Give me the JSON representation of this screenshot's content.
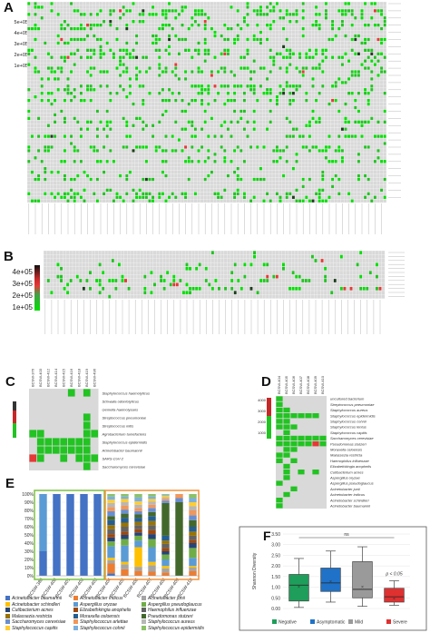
{
  "panels": {
    "a": {
      "label": "A",
      "colorbar": [
        "5e+05",
        "4e+05",
        "3e+05",
        "2e+05",
        "1e+05"
      ]
    },
    "b": {
      "label": "B",
      "colorbar": [
        "4e+05",
        "3e+05",
        "2e+05",
        "1e+05"
      ]
    },
    "c": {
      "label": "C",
      "columns": [
        "BCSW-376",
        "BCSW-403",
        "BCSW-412",
        "BCSW-414",
        "BCSW-415",
        "BCSW-416",
        "BCSW-418",
        "BCSW-419",
        "BCSW-496"
      ],
      "rows": [
        "Staphylococcus haemolyticus",
        "Schwalia odontolyticus",
        "Gemella haemolysans",
        "Streptococcus pneumoniae",
        "Streptococcus mitis",
        "Agrobacterium tumefaciens",
        "Staphylococcus epidermidis",
        "Acinetobacter baumannii",
        "SARS-CoV-2",
        "Saccharomyces cerevisiae"
      ]
    },
    "d": {
      "label": "D",
      "colorbar": [
        "4000",
        "3000",
        "2000",
        "1000"
      ],
      "columns": [
        "BCSW-404",
        "BCSW-405",
        "BCSW-406",
        "BCSW-407",
        "BCSW-408",
        "BCSW-409",
        "BCSW-410"
      ],
      "rows": [
        "uncultured bacterium",
        "Streptococcus pneumoniae",
        "Staphylococcus aureus",
        "Staphylococcus epidermidis",
        "Staphylococcus cohnii",
        "Staphylococcus lentus",
        "Staphylococcus capitis",
        "Saccharomyces cerevisiae",
        "Pseudomonas stutzeri",
        "Moraxella osloensis",
        "Malassezia restricta",
        "Haemophilus influenzae",
        "Elizabethkingia anophelis",
        "Cutibacterium acnes",
        "Aspergillus oryzae",
        "Aspergillus pseudoglaucus",
        "Acinetobacter junii",
        "Acinetobacter indicus",
        "Acinetobacter schindleri",
        "Acinetobacter baumannii"
      ]
    },
    "e": {
      "label": "E"
    },
    "f": {
      "label": "F"
    }
  },
  "chart_data": [
    {
      "type": "bar",
      "panel": "E",
      "stacked": true,
      "ylim": [
        0,
        100
      ],
      "yticks": [
        "0%",
        "10%",
        "20%",
        "30%",
        "40%",
        "50%",
        "60%",
        "70%",
        "80%",
        "90%",
        "100%"
      ],
      "categories": [
        "BCSW-380",
        "BCSW-400",
        "BCSW-401",
        "BCSW-402",
        "BCSW-403",
        "BCSW-404",
        "BCSW-405",
        "BCSW-406",
        "BCSW-407",
        "BCSW-408",
        "BCSW-409",
        "BCSW-410"
      ],
      "series": [
        {
          "name": "Acinetobacter baumannii",
          "color": "#4472c4",
          "values": [
            30,
            100,
            100,
            100,
            100,
            3,
            0,
            0,
            0,
            0,
            0,
            0
          ]
        },
        {
          "name": "Acinetobacter indicus",
          "color": "#ed7d31",
          "values": [
            0,
            0,
            0,
            0,
            0,
            12,
            8,
            6,
            5,
            4,
            0,
            6
          ]
        },
        {
          "name": "Acinetobacter junii",
          "color": "#a5a5a5",
          "values": [
            0,
            0,
            0,
            0,
            0,
            4,
            6,
            5,
            8,
            5,
            0,
            4
          ]
        },
        {
          "name": "Acinetobacter schindleri",
          "color": "#ffc000",
          "values": [
            0,
            0,
            0,
            0,
            0,
            3,
            3,
            24,
            4,
            3,
            0,
            2
          ]
        },
        {
          "name": "Aspergillus oryzae",
          "color": "#5b9bd5",
          "values": [
            70,
            0,
            0,
            0,
            0,
            14,
            20,
            8,
            18,
            8,
            0,
            10
          ]
        },
        {
          "name": "Aspergillus pseudoglaucus",
          "color": "#70ad47",
          "values": [
            0,
            0,
            0,
            0,
            0,
            6,
            8,
            6,
            10,
            6,
            0,
            12
          ]
        },
        {
          "name": "Cutibacterium acnes",
          "color": "#264478",
          "values": [
            0,
            0,
            0,
            0,
            0,
            5,
            5,
            4,
            6,
            4,
            0,
            6
          ]
        },
        {
          "name": "Elizabethkingia anophelis",
          "color": "#9e480e",
          "values": [
            0,
            0,
            0,
            0,
            0,
            4,
            4,
            4,
            5,
            4,
            0,
            4
          ]
        },
        {
          "name": "Haemophilus influenzae",
          "color": "#636363",
          "values": [
            0,
            0,
            0,
            0,
            0,
            6,
            6,
            5,
            6,
            5,
            0,
            5
          ]
        },
        {
          "name": "Malassezia restricta",
          "color": "#997300",
          "values": [
            0,
            0,
            0,
            0,
            0,
            5,
            5,
            4,
            5,
            4,
            0,
            5
          ]
        },
        {
          "name": "Moraxella osloensis",
          "color": "#255e91",
          "values": [
            0,
            0,
            0,
            0,
            0,
            6,
            6,
            5,
            6,
            6,
            0,
            6
          ]
        },
        {
          "name": "Pseudomonas stutzeri",
          "color": "#43682b",
          "values": [
            0,
            0,
            0,
            0,
            0,
            5,
            5,
            4,
            5,
            40,
            90,
            8
          ]
        },
        {
          "name": "Saccharomyces cerevisiae",
          "color": "#698ed0",
          "values": [
            0,
            0,
            0,
            0,
            0,
            6,
            5,
            4,
            5,
            3,
            5,
            6
          ]
        },
        {
          "name": "Staphylococcus arlettae",
          "color": "#f1975a",
          "values": [
            0,
            0,
            0,
            0,
            0,
            5,
            5,
            4,
            4,
            2,
            5,
            6
          ]
        },
        {
          "name": "Staphylococcus aureus",
          "color": "#b7b7b7",
          "values": [
            0,
            0,
            0,
            0,
            0,
            5,
            4,
            4,
            4,
            2,
            0,
            5
          ]
        },
        {
          "name": "Staphylococcus capitis",
          "color": "#ffcd33",
          "values": [
            0,
            0,
            0,
            0,
            0,
            4,
            4,
            4,
            3,
            2,
            0,
            5
          ]
        },
        {
          "name": "Staphylococcus cohnii",
          "color": "#7cafdd",
          "values": [
            0,
            0,
            0,
            0,
            0,
            4,
            3,
            5,
            3,
            1,
            0,
            5
          ]
        },
        {
          "name": "Staphylococcus epidermidis",
          "color": "#8cc168",
          "values": [
            0,
            0,
            0,
            0,
            0,
            3,
            3,
            4,
            3,
            1,
            0,
            5
          ]
        }
      ]
    },
    {
      "type": "box",
      "panel": "F",
      "ylabel": "Shannon Diversity",
      "ylim": [
        0,
        3.5
      ],
      "yticks": [
        "0.00",
        "0.50",
        "1.00",
        "1.50",
        "2.00",
        "2.50",
        "3.00",
        "3.50"
      ],
      "annotations": [
        "ns",
        "p < 0.05"
      ],
      "groups": [
        {
          "name": "Negative",
          "color": "#1e9e5a",
          "min": 0.05,
          "q1": 0.35,
          "median": 1.1,
          "q3": 1.6,
          "max": 2.35,
          "mean": 1.05
        },
        {
          "name": "Asymptomatic",
          "color": "#1f72c7",
          "min": 0.3,
          "q1": 0.8,
          "median": 1.2,
          "q3": 1.9,
          "max": 2.7,
          "mean": 1.3
        },
        {
          "name": "Mild",
          "color": "#9a9a9a",
          "min": 0.1,
          "q1": 0.5,
          "median": 0.9,
          "q3": 2.2,
          "max": 2.9,
          "mean": 1.05
        },
        {
          "name": "Severe",
          "color": "#e03030",
          "min": 0.15,
          "q1": 0.3,
          "median": 0.55,
          "q3": 0.95,
          "max": 1.3,
          "mean": 0.5
        }
      ]
    }
  ]
}
